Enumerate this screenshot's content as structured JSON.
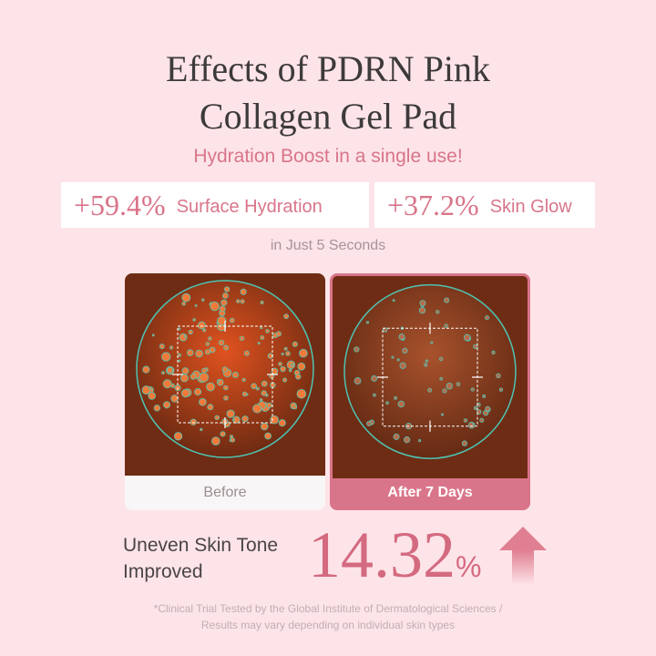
{
  "title": {
    "line1": "Effects of PDRN Pink",
    "line2": "Collagen Gel Pad"
  },
  "subtitle": "Hydration Boost in a single use!",
  "stats": [
    {
      "value": "+59.4%",
      "label": "Surface Hydration"
    },
    {
      "value": "+37.2%",
      "label": "Skin Glow"
    }
  ],
  "timing": "in Just 5 Seconds",
  "panels": [
    {
      "label": "Before"
    },
    {
      "label": "After 7 Days"
    }
  ],
  "result": {
    "label_line1": "Uneven Skin Tone",
    "label_line2": "Improved",
    "value": "14.32",
    "unit": "%",
    "icon": "arrow-up-icon"
  },
  "footnote": {
    "line1": "*Clinical Trial Tested by the Global Institute of Dermatological Sciences /",
    "line2": "Results may vary depending on individual skin types"
  },
  "colors": {
    "background": "#fde4e8",
    "accent": "#d9758a",
    "scan_outline": "#4fc3b3"
  }
}
